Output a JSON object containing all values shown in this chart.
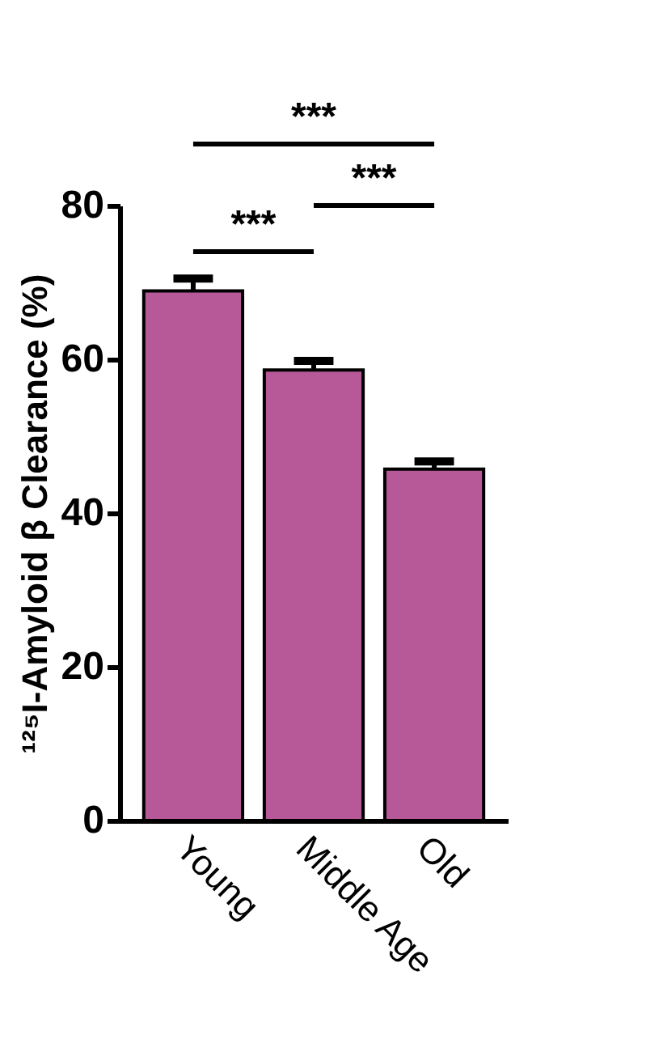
{
  "chart_data": {
    "type": "bar",
    "ylabel": "¹²⁵I-Amyloid β Clearance (%)",
    "categories": [
      "Young",
      "Middle Age",
      "Old"
    ],
    "values": [
      68.9,
      58.6,
      45.7
    ],
    "errors": [
      1.6,
      1.2,
      1.0
    ],
    "color": "#b75898",
    "ylim": [
      0,
      80
    ],
    "yticks": [
      0,
      20,
      40,
      60,
      80
    ],
    "grid": false,
    "annotations": [
      "***",
      "***",
      "***"
    ]
  }
}
